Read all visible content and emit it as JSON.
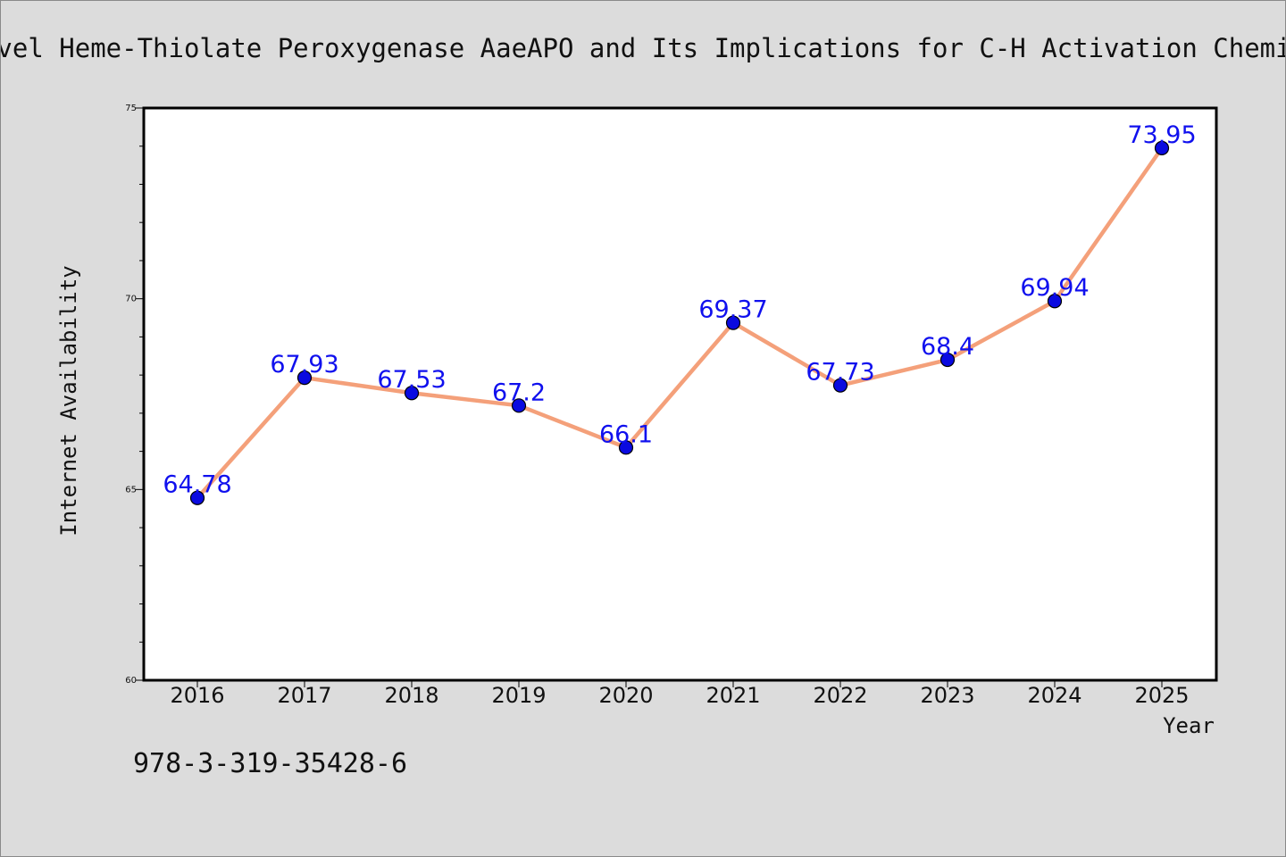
{
  "chart_data": {
    "type": "line",
    "title": "A Novel Heme-Thiolate Peroxygenase AaeAPO and Its Implications for C-H Activation Chemistry",
    "xlabel": "Year",
    "ylabel": "Internet Availability",
    "categories": [
      "2016",
      "2017",
      "2018",
      "2019",
      "2020",
      "2021",
      "2022",
      "2023",
      "2024",
      "2025"
    ],
    "series": [
      {
        "values": [
          64.78,
          67.93,
          67.53,
          67.2,
          66.1,
          69.37,
          67.73,
          68.4,
          69.94,
          73.95
        ],
        "labels": [
          "64.78",
          "67.93",
          "67.53",
          "67.2",
          "66.1",
          "69.37",
          "67.73",
          "68.4",
          "69.94",
          "73.95"
        ]
      }
    ],
    "ylim": [
      60,
      75
    ],
    "yticks": [
      "60",
      "65",
      "70",
      "75"
    ],
    "grid": false,
    "colors": {
      "line": "#f4a07a",
      "marker": "#0a0ae0",
      "data_label": "#1010ee",
      "background": "#dcdcdc",
      "plot_background": "#ffffff"
    }
  },
  "footer": {
    "isbn": "978-3-319-35428-6"
  }
}
